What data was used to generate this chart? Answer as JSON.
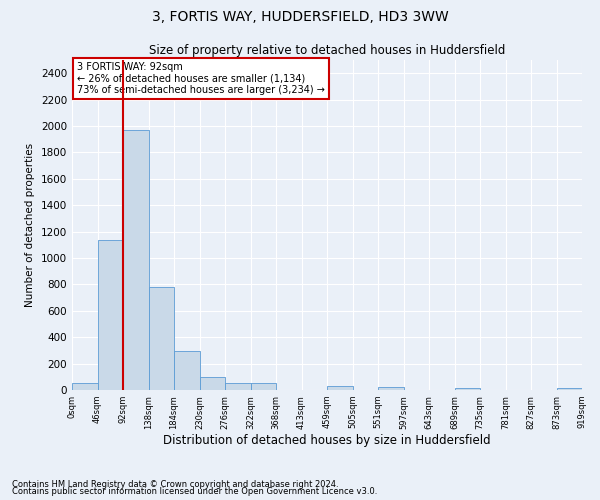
{
  "title": "3, FORTIS WAY, HUDDERSFIELD, HD3 3WW",
  "subtitle": "Size of property relative to detached houses in Huddersfield",
  "xlabel": "Distribution of detached houses by size in Huddersfield",
  "ylabel": "Number of detached properties",
  "footnote1": "Contains HM Land Registry data © Crown copyright and database right 2024.",
  "footnote2": "Contains public sector information licensed under the Open Government Licence v3.0.",
  "annotation_line1": "3 FORTIS WAY: 92sqm",
  "annotation_line2": "← 26% of detached houses are smaller (1,134)",
  "annotation_line3": "73% of semi-detached houses are larger (3,234) →",
  "bar_color": "#c9d9e8",
  "bar_edge_color": "#5b9bd5",
  "red_line_x": 2,
  "red_line_color": "#cc0000",
  "bins": [
    "0sqm",
    "46sqm",
    "92sqm",
    "138sqm",
    "184sqm",
    "230sqm",
    "276sqm",
    "322sqm",
    "368sqm",
    "413sqm",
    "459sqm",
    "505sqm",
    "551sqm",
    "597sqm",
    "643sqm",
    "689sqm",
    "735sqm",
    "781sqm",
    "827sqm",
    "873sqm",
    "919sqm"
  ],
  "values": [
    50,
    1134,
    1970,
    780,
    295,
    100,
    50,
    50,
    0,
    0,
    30,
    0,
    20,
    0,
    0,
    15,
    0,
    0,
    0,
    15
  ],
  "ylim": [
    0,
    2500
  ],
  "yticks": [
    0,
    200,
    400,
    600,
    800,
    1000,
    1200,
    1400,
    1600,
    1800,
    2000,
    2200,
    2400
  ],
  "background_color": "#eaf0f8",
  "plot_bg_color": "#eaf0f8",
  "grid_color": "#ffffff",
  "annotation_box_color": "#ffffff",
  "annotation_border_color": "#cc0000",
  "title_fontsize": 10,
  "subtitle_fontsize": 8.5,
  "ylabel_fontsize": 7.5,
  "xlabel_fontsize": 8.5,
  "ytick_fontsize": 7.5,
  "xtick_fontsize": 6,
  "annot_fontsize": 7,
  "footnote_fontsize": 6
}
